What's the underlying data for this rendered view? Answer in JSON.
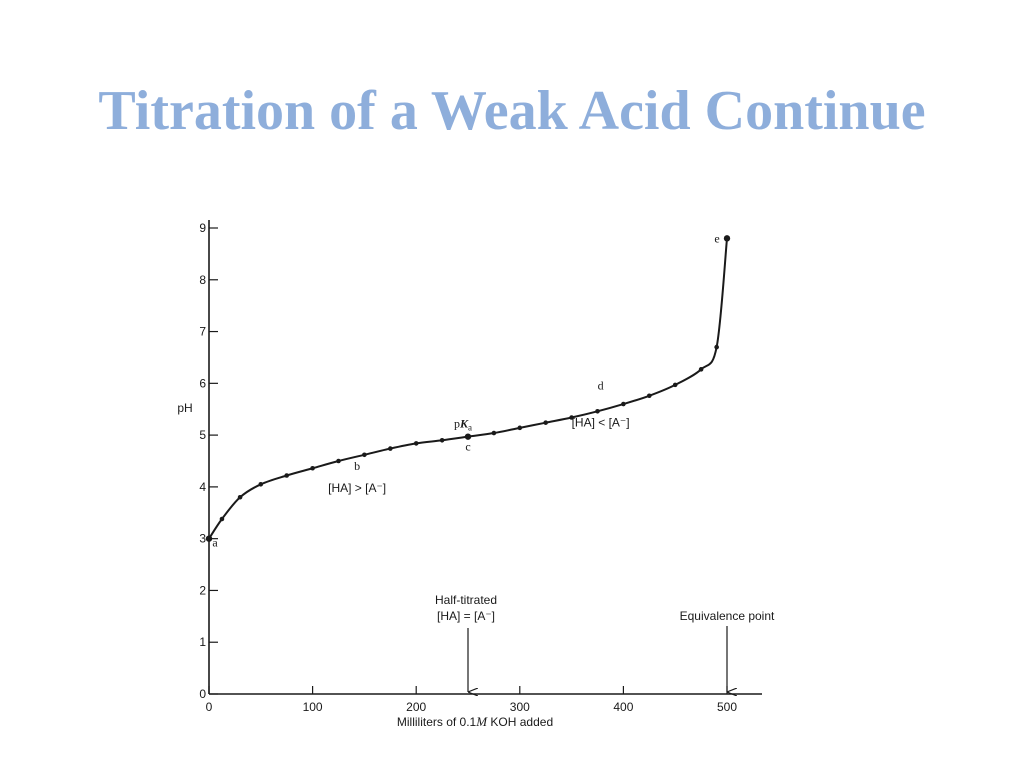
{
  "slide": {
    "title": "Titration of a Weak Acid Continue"
  },
  "chart_data": {
    "type": "line",
    "title": "",
    "xlabel": "Milliliters of 0.1M KOH added",
    "ylabel": "pH",
    "xlim": [
      0,
      500
    ],
    "ylim": [
      0,
      9
    ],
    "x_ticks": [
      0,
      100,
      200,
      300,
      400,
      500
    ],
    "y_ticks": [
      0,
      1,
      2,
      3,
      4,
      5,
      6,
      7,
      8,
      9
    ],
    "grid": false,
    "series": [
      {
        "x": [
          0,
          12.5,
          30,
          50,
          75,
          100,
          125,
          150,
          175,
          200,
          225,
          250,
          275,
          300,
          325,
          350,
          375,
          400,
          425,
          450,
          475,
          490,
          500
        ],
        "y": [
          3.0,
          3.38,
          3.8,
          4.05,
          4.22,
          4.36,
          4.5,
          4.62,
          4.74,
          4.84,
          4.9,
          4.97,
          5.04,
          5.14,
          5.24,
          5.34,
          5.46,
          5.6,
          5.76,
          5.97,
          6.27,
          6.7,
          8.8
        ]
      }
    ],
    "point_labels": [
      {
        "text": "a",
        "x": 0,
        "y": 3.0
      },
      {
        "text": "b",
        "x": 143,
        "y": 4.6
      },
      {
        "text": "c",
        "x": 250,
        "y": 4.97
      },
      {
        "text": "d",
        "x": 378,
        "y": 5.46
      },
      {
        "text": "e",
        "x": 500,
        "y": 8.8
      }
    ],
    "annotations": {
      "pka_prefix": "p",
      "pka_symbol": "K",
      "pka_subscript": "a",
      "ha_gt_a": "[HA] > [A⁻]",
      "ha_lt_a": "[HA] < [A⁻]",
      "half_titrated": "Half-titrated",
      "ha_eq_a": "[HA] = [A⁻]",
      "equivalence_point": "Equivalence point"
    },
    "arrows": [
      {
        "name": "half-titrated-arrow",
        "x": 250
      },
      {
        "name": "equivalence-arrow",
        "x": 500
      }
    ],
    "xlabel_parts": {
      "before": "Milliliters of 0.1",
      "italic": "M",
      "after": " KOH added"
    }
  }
}
